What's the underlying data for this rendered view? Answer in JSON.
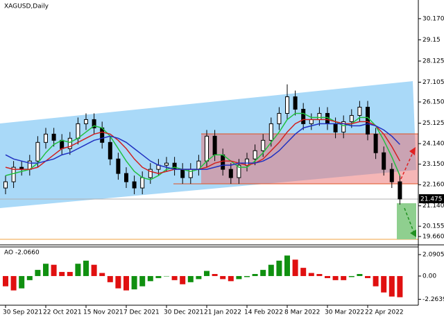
{
  "chart_data": {
    "type": "candlestick",
    "title": "XAGUSD,Daily",
    "categories": [
      "30 Sep 2021",
      null,
      null,
      null,
      null,
      "22 Oct 2021",
      null,
      null,
      null,
      null,
      "15 Nov 2021",
      null,
      null,
      null,
      null,
      "7 Dec 2021",
      null,
      null,
      null,
      null,
      "30 Dec 2021",
      null,
      null,
      null,
      null,
      "21 Jan 2022",
      null,
      null,
      null,
      null,
      "14 Feb 2022",
      null,
      null,
      null,
      null,
      "8 Mar 2022",
      null,
      null,
      null,
      null,
      "30 Mar 2022",
      null,
      null,
      null,
      null,
      "22 Apr 2022",
      null,
      null,
      null,
      null
    ],
    "open": [
      22.0,
      22.3,
      23.0,
      22.9,
      23.3,
      24.2,
      24.6,
      24.3,
      23.9,
      24.4,
      25.1,
      25.3,
      24.9,
      24.2,
      23.4,
      22.7,
      22.3,
      22.0,
      22.5,
      22.9,
      23.1,
      23.2,
      22.9,
      22.5,
      22.9,
      23.3,
      24.5,
      23.6,
      22.9,
      22.5,
      23.1,
      23.4,
      23.8,
      24.3,
      25.1,
      25.6,
      26.4,
      25.8,
      25.1,
      25.3,
      25.6,
      25.1,
      24.7,
      25.2,
      25.5,
      25.9,
      24.6,
      23.7,
      22.9,
      22.3
    ],
    "high": [
      22.6,
      23.3,
      23.3,
      23.6,
      24.5,
      24.9,
      24.9,
      24.6,
      24.7,
      25.4,
      25.6,
      25.6,
      25.2,
      24.5,
      23.7,
      23.0,
      22.6,
      22.8,
      23.2,
      23.4,
      23.5,
      23.5,
      23.2,
      23.2,
      23.6,
      24.8,
      24.8,
      23.9,
      23.2,
      23.4,
      23.7,
      24.1,
      24.6,
      25.4,
      25.9,
      27.0,
      26.7,
      26.1,
      25.6,
      25.9,
      25.9,
      25.4,
      25.5,
      25.8,
      26.2,
      26.2,
      24.9,
      24.0,
      23.2,
      22.6
    ],
    "low": [
      21.7,
      22.0,
      22.6,
      22.6,
      23.0,
      23.9,
      24.0,
      23.6,
      23.6,
      24.1,
      24.8,
      24.6,
      23.9,
      23.1,
      22.4,
      22.0,
      21.7,
      21.7,
      22.2,
      22.6,
      22.8,
      22.6,
      22.2,
      22.2,
      22.6,
      23.0,
      23.3,
      22.6,
      22.2,
      22.2,
      22.8,
      23.1,
      23.5,
      24.0,
      24.8,
      25.3,
      25.5,
      24.8,
      24.8,
      25.0,
      24.8,
      24.4,
      24.4,
      24.9,
      25.2,
      24.3,
      23.4,
      22.6,
      22.0,
      21.2
    ],
    "close": [
      22.3,
      23.0,
      22.9,
      23.3,
      24.2,
      24.6,
      24.3,
      23.9,
      24.4,
      25.1,
      25.3,
      24.9,
      24.2,
      23.4,
      22.7,
      22.3,
      22.0,
      22.5,
      22.9,
      23.1,
      23.2,
      22.9,
      22.5,
      22.9,
      23.3,
      24.5,
      23.6,
      22.9,
      22.5,
      23.1,
      23.4,
      23.8,
      24.3,
      25.1,
      25.6,
      26.4,
      25.8,
      25.1,
      25.3,
      25.6,
      25.1,
      24.7,
      25.2,
      25.5,
      25.9,
      24.6,
      23.7,
      22.9,
      22.3,
      21.47
    ],
    "candle_color": "#000000",
    "series": [
      {
        "color": "#22c040",
        "values": [
          22.6,
          22.7,
          22.8,
          22.9,
          23.2,
          23.7,
          24.1,
          24.3,
          24.2,
          24.4,
          24.7,
          25.0,
          24.9,
          24.5,
          23.9,
          23.3,
          22.8,
          22.5,
          22.4,
          22.6,
          22.9,
          23.0,
          22.9,
          22.8,
          22.9,
          23.3,
          23.6,
          23.6,
          23.3,
          23.0,
          23.0,
          23.3,
          23.7,
          24.2,
          24.7,
          25.3,
          25.6,
          25.6,
          25.4,
          25.4,
          25.4,
          25.2,
          25.0,
          25.1,
          25.4,
          25.4,
          25.0,
          24.3,
          23.5,
          22.6
        ]
      },
      {
        "color": "#d02020",
        "values": [
          23.0,
          22.9,
          22.9,
          22.9,
          23.0,
          23.3,
          23.6,
          23.9,
          24.0,
          24.2,
          24.4,
          24.6,
          24.7,
          24.6,
          24.3,
          23.9,
          23.4,
          23.0,
          22.8,
          22.7,
          22.8,
          22.9,
          22.9,
          22.9,
          22.9,
          23.0,
          23.2,
          23.3,
          23.3,
          23.2,
          23.1,
          23.2,
          23.4,
          23.8,
          24.2,
          24.7,
          25.1,
          25.3,
          25.3,
          25.3,
          25.3,
          25.2,
          25.1,
          25.1,
          25.2,
          25.2,
          25.0,
          24.6,
          24.0,
          23.3
        ]
      },
      {
        "color": "#2030c0",
        "values": [
          23.6,
          23.4,
          23.3,
          23.2,
          23.2,
          23.3,
          23.4,
          23.6,
          23.7,
          23.9,
          24.1,
          24.3,
          24.4,
          24.5,
          24.4,
          24.2,
          23.9,
          23.6,
          23.3,
          23.1,
          23.0,
          22.9,
          22.9,
          22.9,
          22.9,
          22.9,
          23.0,
          23.1,
          23.1,
          23.2,
          23.2,
          23.2,
          23.3,
          23.5,
          23.8,
          24.2,
          24.6,
          24.9,
          25.0,
          25.1,
          25.1,
          25.1,
          25.1,
          25.0,
          25.0,
          25.1,
          25.0,
          24.8,
          24.5,
          24.1
        ]
      }
    ],
    "ylim": [
      19.29,
      31.07
    ],
    "yticks": [
      {
        "value": 30.17,
        "label": "30.170"
      },
      29.15,
      28.125,
      27.105,
      {
        "value": 26.15,
        "label": "26.150"
      },
      25.125,
      {
        "value": 24.14,
        "label": "24.140"
      },
      {
        "value": 23.15,
        "label": "23.150"
      },
      {
        "value": 22.16,
        "label": "22.160"
      },
      {
        "value": 21.14,
        "label": "21.140"
      },
      20.155,
      {
        "value": 19.66,
        "label": "19.660"
      }
    ],
    "current_price": 21.475,
    "indicator": {
      "title": "AO -2.0660",
      "up_color": "#109010",
      "down_color": "#e01010",
      "values": [
        -1.0,
        -1.4,
        -1.2,
        -0.4,
        0.6,
        1.2,
        1.1,
        0.4,
        0.4,
        1.2,
        1.5,
        1.1,
        0.3,
        -0.6,
        -1.2,
        -1.4,
        -1.3,
        -1.0,
        -0.5,
        -0.2,
        0.0,
        -0.4,
        -0.8,
        -0.6,
        -0.3,
        0.5,
        0.2,
        -0.3,
        -0.5,
        -0.3,
        -0.1,
        0.2,
        0.6,
        1.1,
        1.5,
        2.0,
        1.6,
        0.8,
        0.3,
        0.2,
        -0.2,
        -0.4,
        -0.4,
        -0.1,
        0.2,
        -0.2,
        -1.0,
        -1.6,
        -2.0,
        -2.066
      ],
      "ylim": [
        -2.64,
        2.77
      ],
      "yticks": [
        2.0905,
        {
          "value": 0,
          "label": "0.00"
        },
        -2.2639
      ]
    }
  }
}
